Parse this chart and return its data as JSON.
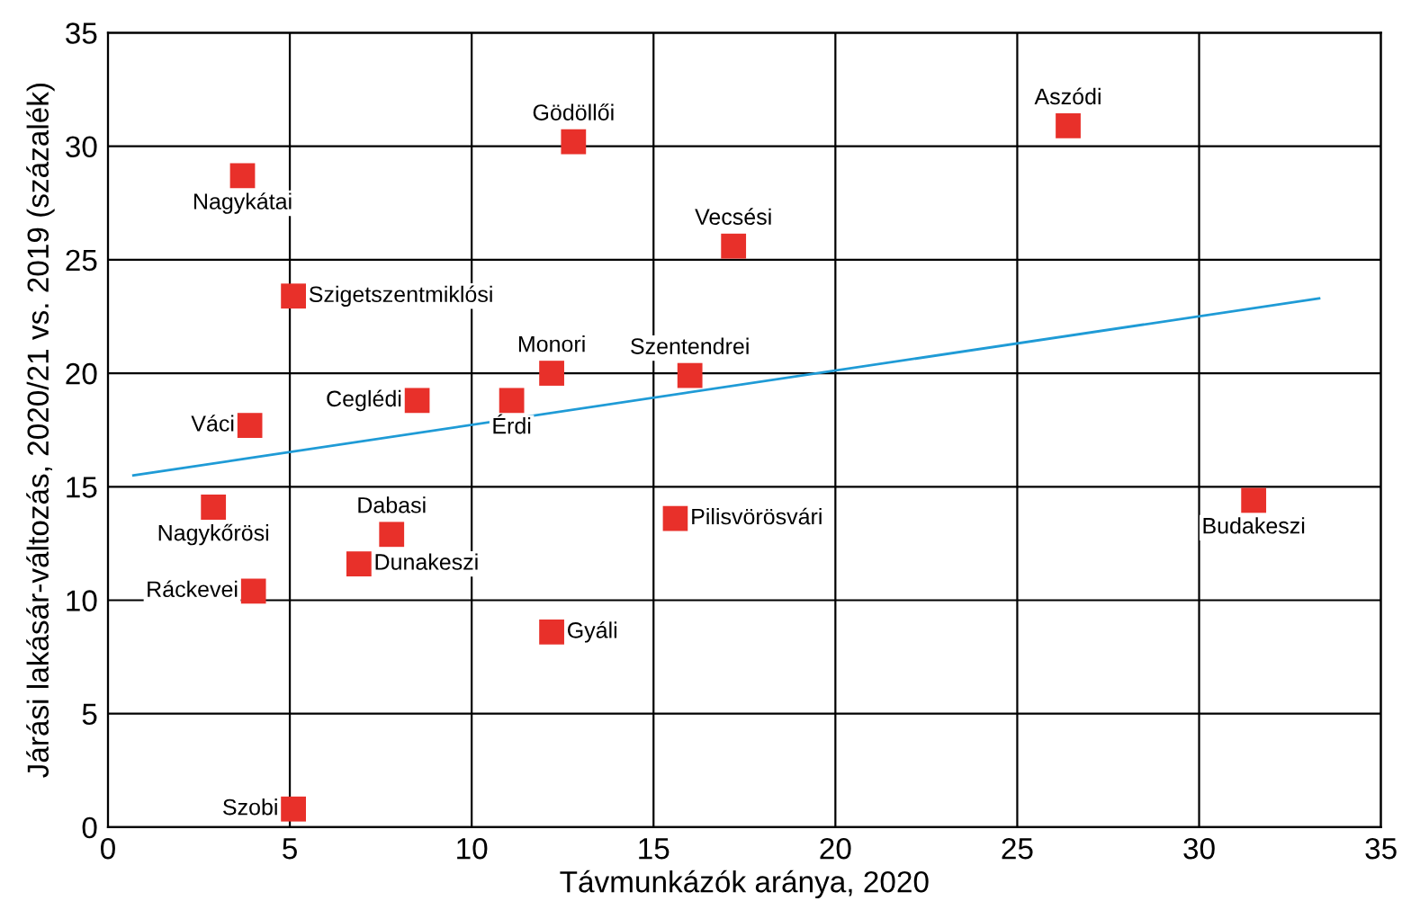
{
  "chart_data": {
    "type": "scatter",
    "xlabel": "Távmunkázók aránya, 2020",
    "ylabel": "Járási lakásár-változás, 2020/21 vs. 2019 (százalék)",
    "xlim": [
      0,
      35
    ],
    "ylim": [
      0,
      35
    ],
    "xticks": [
      0,
      5,
      10,
      15,
      20,
      25,
      30,
      35
    ],
    "yticks": [
      0,
      5,
      10,
      15,
      20,
      25,
      30,
      35
    ],
    "grid": true,
    "series": [
      {
        "marker": "square",
        "color": "#e8302a",
        "x": [
          3.7,
          12.8,
          26.4,
          17.2,
          5.1,
          12.2,
          16.0,
          8.5,
          11.1,
          3.9,
          2.9,
          31.5,
          15.6,
          7.8,
          6.9,
          4.0,
          12.2,
          5.1
        ],
        "values": [
          28.7,
          30.2,
          30.9,
          25.6,
          23.4,
          20.0,
          19.9,
          18.8,
          18.8,
          17.7,
          14.1,
          14.4,
          13.6,
          12.9,
          11.6,
          10.4,
          8.6,
          0.8
        ]
      },
      {
        "type": "line",
        "marker": "none",
        "color": "#1f9bd6",
        "x": [
          0.7,
          33.3
        ],
        "values": [
          15.5,
          23.3
        ]
      }
    ],
    "annotations": [
      {
        "text": "Nagykátai",
        "x": 3.7,
        "y": 28.7
      },
      {
        "text": "Gödöllői",
        "x": 12.8,
        "y": 30.2
      },
      {
        "text": "Aszódi",
        "x": 26.4,
        "y": 30.9
      },
      {
        "text": "Vecsési",
        "x": 17.2,
        "y": 25.6
      },
      {
        "text": "Szigetszentmiklósi",
        "x": 5.1,
        "y": 23.4
      },
      {
        "text": "Monori",
        "x": 12.2,
        "y": 20.0
      },
      {
        "text": "Szentendrei",
        "x": 16.0,
        "y": 19.9
      },
      {
        "text": "Ceglédi",
        "x": 8.5,
        "y": 18.8
      },
      {
        "text": "Érdi",
        "x": 11.1,
        "y": 18.8
      },
      {
        "text": "Váci",
        "x": 3.9,
        "y": 17.7
      },
      {
        "text": "Nagykőrösi",
        "x": 2.9,
        "y": 14.1
      },
      {
        "text": "Budakeszi",
        "x": 31.5,
        "y": 14.4
      },
      {
        "text": "Pilisvörösvári",
        "x": 15.6,
        "y": 13.6
      },
      {
        "text": "Dabasi",
        "x": 7.8,
        "y": 12.9
      },
      {
        "text": "Dunakeszi",
        "x": 6.9,
        "y": 11.6
      },
      {
        "text": "Ráckevei",
        "x": 4.0,
        "y": 10.4
      },
      {
        "text": "Gyáli",
        "x": 12.2,
        "y": 8.6
      },
      {
        "text": "Szobi",
        "x": 5.1,
        "y": 0.8
      }
    ]
  }
}
